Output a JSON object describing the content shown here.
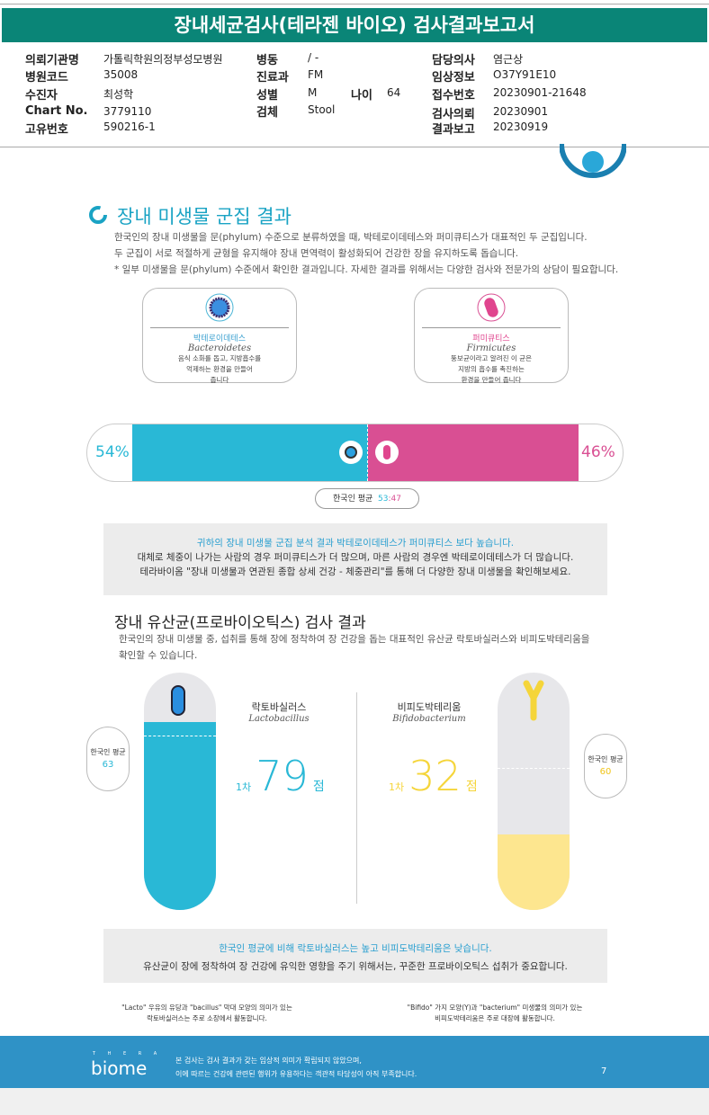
{
  "header": {
    "title": "장내세균검사(테라젠 바이오) 검사결과보고서"
  },
  "info": [
    {
      "k": "의뢰기관명",
      "v": "가톨릭학원의정부성모병원"
    },
    {
      "k": "병원코드",
      "v": "35008"
    },
    {
      "k": "수진자",
      "v": "최성학"
    },
    {
      "k": "Chart No.",
      "v": "3779110"
    },
    {
      "k": "고유번호",
      "v": "590216-1"
    },
    {
      "k": "병동",
      "v": "/ -"
    },
    {
      "k": "진료과",
      "v": "FM"
    },
    {
      "k": "성별",
      "v": "M"
    },
    {
      "k": "검체",
      "v": "Stool"
    },
    {
      "k": "나이",
      "v": "64"
    },
    {
      "k": "담당의사",
      "v": "염근상"
    },
    {
      "k": "임상정보",
      "v": "O37Y91E10"
    },
    {
      "k": "접수번호",
      "v": "20230901-21648"
    },
    {
      "k": "검사의뢰",
      "v": "20230901"
    },
    {
      "k": "결과보고",
      "v": "20230919"
    }
  ],
  "section1": {
    "title": "장내 미생물 군집 결과",
    "lines": [
      "한국인의 장내 미생물을 문(phylum) 수준으로 분류하였을 때, 박테로이데테스와 퍼미큐티스가 대표적인 두 군집입니다.",
      "두 군집이 서로 적절하게 균형을 유지해야 장내 면역력이 활성화되어 건강한 장을 유지하도록 돕습니다.",
      "* 일부 미생물을 문(phylum) 수준에서 확인한 결과입니다. 자세한 결과를 위해서는 다양한 검사와 전문가의 상담이 필요합니다."
    ],
    "cards": [
      {
        "ko": "박테로이데테스",
        "en": "Bacteroidetes",
        "desc": [
          "음식 소화를 돕고, 지방흡수를",
          "억제하는 환경을 만들어",
          "줍니다"
        ],
        "color": "#3aa0d0"
      },
      {
        "ko": "퍼미큐티스",
        "en": "Firmicutes",
        "desc": [
          "뚱보균이라고 알려진 이 균은",
          "지방의 흡수를 촉진하는",
          "환경을 만들어 줍니다"
        ],
        "color": "#e0458e"
      }
    ],
    "bacteroidetes_pct": "54%",
    "firmicutes_pct": "46%",
    "bacteroidetes_value": 54,
    "avg_label": "한국인 평균",
    "avg_a": "53",
    "avg_b": ":47",
    "box": [
      "귀하의 장내 미생물 군집 분석 결과 박테로이데테스가 퍼미큐티스 보다 높습니다.",
      "대체로 체중이 나가는 사람의 경우 퍼미큐티스가 더 많으며, 마른 사람의 경우엔 박테로이데테스가 더 많습니다.",
      "테라바이옴 \"장내 미생물과 연관된 종합 상세 건강 - 체중관리\"를 통해 더 다양한 장내 미생물을 확인해보세요."
    ]
  },
  "section2": {
    "title": "장내 유산균(프로바이오틱스) 검사 결과",
    "lines": [
      "한국인의 장내 미생물 중, 섭취를 통해 장에 정착하여 장 건강을 돕는 대표적인 유산균 락토바실러스와 비피도박테리움을",
      "확인할 수 있습니다."
    ],
    "lacto": {
      "ko": "락토바실러스",
      "en": "Lactobacillus",
      "prefix": "1차",
      "score": "79",
      "unit": "점",
      "avg_label": "한국인 평균",
      "avg": "63",
      "value": 79
    },
    "bifido": {
      "ko": "비피도박테리움",
      "en": "Bifidobacterium",
      "prefix": "1차",
      "score": "32",
      "unit": "점",
      "avg_label": "한국인 평균",
      "avg": "60",
      "value": 32
    },
    "box": [
      "한국인 평균에 비해 락토바실러스는 높고 비피도박테리움은 낮습니다.",
      "유산균이 장에 정착하여 장 건강에 유익한 영향을 주기 위해서는, 꾸준한 프로바이오틱스 섭취가 중요합니다."
    ],
    "note_left": [
      "\"Lacto\" 우유의 유당과 \"bacillus\" 막대 모양의 의미가 있는",
      "락토바실러스는 주로 소장에서 활동합니다."
    ],
    "note_right": [
      "\"Bifido\" 가지 모양(Y)과 \"bacterium\" 미생물의 의미가 있는",
      "비피도박테리움은 주로 대장에 활동합니다."
    ]
  },
  "footer": {
    "logo_top": "T H E R A",
    "logo": "biome",
    "lines": [
      "본 검사는 검사 결과가 갖는 임상적 의미가 확립되지 않았으며,",
      "이에 따르는 건강에 관련된 행위가 유용하다는 객관적 타당성이 아직 부족합니다."
    ],
    "page": "7"
  },
  "colors": {
    "teal": "#0a8577",
    "cyan": "#29b8d6",
    "pink": "#d94f93",
    "yellow": "#f5d53a",
    "footer": "#2f92c6"
  }
}
